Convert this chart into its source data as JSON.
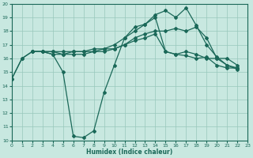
{
  "xlabel": "Humidex (Indice chaleur)",
  "bg_color": "#c8e8e0",
  "grid_color": "#98c8bc",
  "line_color": "#1a6858",
  "xlim": [
    0,
    23
  ],
  "ylim": [
    10,
    20
  ],
  "xticks": [
    0,
    1,
    2,
    3,
    4,
    5,
    6,
    7,
    8,
    9,
    10,
    11,
    12,
    13,
    14,
    15,
    16,
    17,
    18,
    19,
    20,
    21,
    22,
    23
  ],
  "yticks": [
    10,
    11,
    12,
    13,
    14,
    15,
    16,
    17,
    18,
    19,
    20
  ],
  "line1_x": [
    0,
    1,
    2,
    3,
    4,
    5,
    6,
    7,
    8,
    9,
    10,
    11,
    12,
    13,
    14,
    15,
    16,
    17,
    18,
    19,
    20,
    21,
    22
  ],
  "line1_y": [
    14.5,
    16.0,
    16.5,
    16.5,
    16.3,
    15.0,
    10.3,
    10.2,
    10.7,
    13.5,
    15.5,
    17.5,
    18.3,
    18.5,
    19.2,
    19.5,
    19.0,
    19.7,
    18.4,
    17.0,
    16.1,
    15.5,
    15.2
  ],
  "line2_x": [
    0,
    1,
    2,
    3,
    4,
    5,
    6,
    7,
    8,
    9,
    10,
    11,
    12,
    13,
    14,
    15,
    16,
    17,
    18,
    19,
    20,
    21,
    22
  ],
  "line2_y": [
    14.5,
    16.0,
    16.5,
    16.5,
    16.3,
    16.3,
    16.5,
    16.5,
    16.5,
    16.5,
    16.7,
    17.0,
    17.5,
    17.8,
    18.0,
    18.0,
    18.2,
    18.0,
    18.3,
    17.5,
    16.0,
    15.5,
    15.3
  ],
  "line3_x": [
    2,
    3,
    4,
    5,
    6,
    7,
    8,
    9,
    10,
    11,
    12,
    13,
    14,
    15,
    16,
    17,
    18,
    19,
    20,
    21,
    22
  ],
  "line3_y": [
    16.5,
    16.5,
    16.5,
    16.5,
    16.5,
    16.5,
    16.7,
    16.7,
    16.7,
    17.0,
    17.3,
    17.5,
    17.8,
    16.5,
    16.3,
    16.5,
    16.3,
    16.0,
    16.0,
    16.0,
    15.5
  ],
  "line4_x": [
    2,
    3,
    4,
    5,
    6,
    7,
    8,
    9,
    10,
    11,
    12,
    13,
    14,
    15,
    16,
    17,
    18,
    19,
    20,
    21,
    22
  ],
  "line4_y": [
    16.5,
    16.5,
    16.5,
    16.3,
    16.3,
    16.3,
    16.5,
    16.7,
    17.0,
    17.5,
    18.0,
    18.5,
    19.0,
    16.5,
    16.3,
    16.2,
    16.0,
    16.1,
    15.5,
    15.3,
    15.3
  ]
}
